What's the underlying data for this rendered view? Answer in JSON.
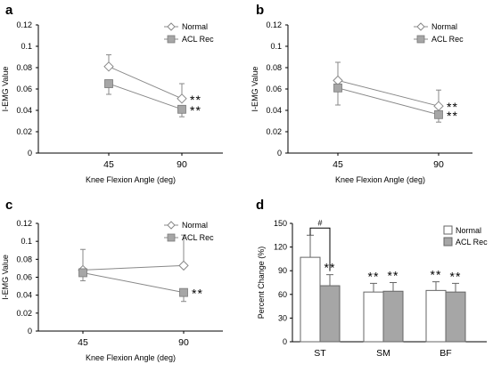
{
  "chart_data": [
    {
      "panel": "a",
      "type": "line",
      "x_categories": [
        "45",
        "90"
      ],
      "xlabel": "Knee Flexion Angle (deg)",
      "ylabel": "I-EMG Value",
      "ylim": [
        0,
        0.12
      ],
      "yticks": [
        "0",
        "0.02",
        "0.04",
        "0.06",
        "0.08",
        "0.1",
        "0.12"
      ],
      "legend_position": "top-right",
      "series": [
        {
          "name": "Normal",
          "values": [
            0.081,
            0.051
          ],
          "err": [
            0.011,
            0.014
          ],
          "marker": "diamond-open"
        },
        {
          "name": "ACL Rec",
          "values": [
            0.065,
            0.041
          ],
          "err": [
            0.01,
            0.007
          ],
          "marker": "square-gray"
        }
      ],
      "annotations": [
        {
          "x": "90",
          "series": "Normal",
          "text": "**"
        },
        {
          "x": "90",
          "series": "ACL Rec",
          "text": "**"
        }
      ]
    },
    {
      "panel": "b",
      "type": "line",
      "x_categories": [
        "45",
        "90"
      ],
      "xlabel": "Knee Flexion Angle (deg)",
      "ylabel": "I-EMG Value",
      "ylim": [
        0,
        0.12
      ],
      "yticks": [
        "0",
        "0.02",
        "0.04",
        "0.06",
        "0.08",
        "0.1",
        "0.12"
      ],
      "legend_position": "top-right",
      "series": [
        {
          "name": "Normal",
          "values": [
            0.068,
            0.044
          ],
          "err": [
            0.017,
            0.015
          ],
          "marker": "diamond-open"
        },
        {
          "name": "ACL Rec",
          "values": [
            0.061,
            0.036
          ],
          "err": [
            0.016,
            0.007
          ],
          "marker": "square-gray"
        }
      ],
      "annotations": [
        {
          "x": "90",
          "series": "Normal",
          "text": "**"
        },
        {
          "x": "90",
          "series": "ACL Rec",
          "text": "**"
        }
      ]
    },
    {
      "panel": "c",
      "type": "line",
      "x_categories": [
        "45",
        "90"
      ],
      "xlabel": "Knee Flexion Angle (deg)",
      "ylabel": "I-EMG Value",
      "ylim": [
        0,
        0.12
      ],
      "yticks": [
        "0",
        "0.02",
        "0.04",
        "0.06",
        "0.08",
        "0.1",
        "0.12"
      ],
      "legend_position": "top-right",
      "series": [
        {
          "name": "Normal",
          "values": [
            0.068,
            0.073
          ],
          "err": [
            0.023,
            0.034
          ],
          "marker": "diamond-open"
        },
        {
          "name": "ACL Rec",
          "values": [
            0.065,
            0.043
          ],
          "err": [
            0.009,
            0.01
          ],
          "marker": "square-gray"
        }
      ],
      "annotations": [
        {
          "x": "90",
          "series": "ACL Rec",
          "text": "**"
        }
      ]
    },
    {
      "panel": "d",
      "type": "bar",
      "categories": [
        "ST",
        "SM",
        "BF"
      ],
      "ylabel": "Percent Change (%)",
      "ylim": [
        0,
        150
      ],
      "yticks": [
        "0",
        "30",
        "60",
        "90",
        "120",
        "150"
      ],
      "legend_position": "top-right",
      "series": [
        {
          "name": "Normal",
          "values": [
            107,
            63,
            65
          ],
          "err": [
            28,
            11,
            11
          ],
          "fill": "#ffffff"
        },
        {
          "name": "ACL Rec",
          "values": [
            71,
            64,
            63
          ],
          "err": [
            14,
            11,
            11
          ],
          "fill": "#a6a6a6"
        }
      ],
      "annotations": [
        {
          "category": "ST",
          "series": "ACL Rec",
          "text": "**"
        },
        {
          "category": "SM",
          "series": "Normal",
          "text": "**"
        },
        {
          "category": "SM",
          "series": "ACL Rec",
          "text": "**"
        },
        {
          "category": "BF",
          "series": "Normal",
          "text": "**"
        },
        {
          "category": "BF",
          "series": "ACL Rec",
          "text": "**"
        },
        {
          "category": "ST",
          "bracket": "Normal-ACL Rec",
          "text": "#"
        }
      ]
    }
  ],
  "colors": {
    "axis": "#000000",
    "line": "#888888",
    "gray_fill": "#a6a6a6",
    "open_fill": "#ffffff"
  }
}
